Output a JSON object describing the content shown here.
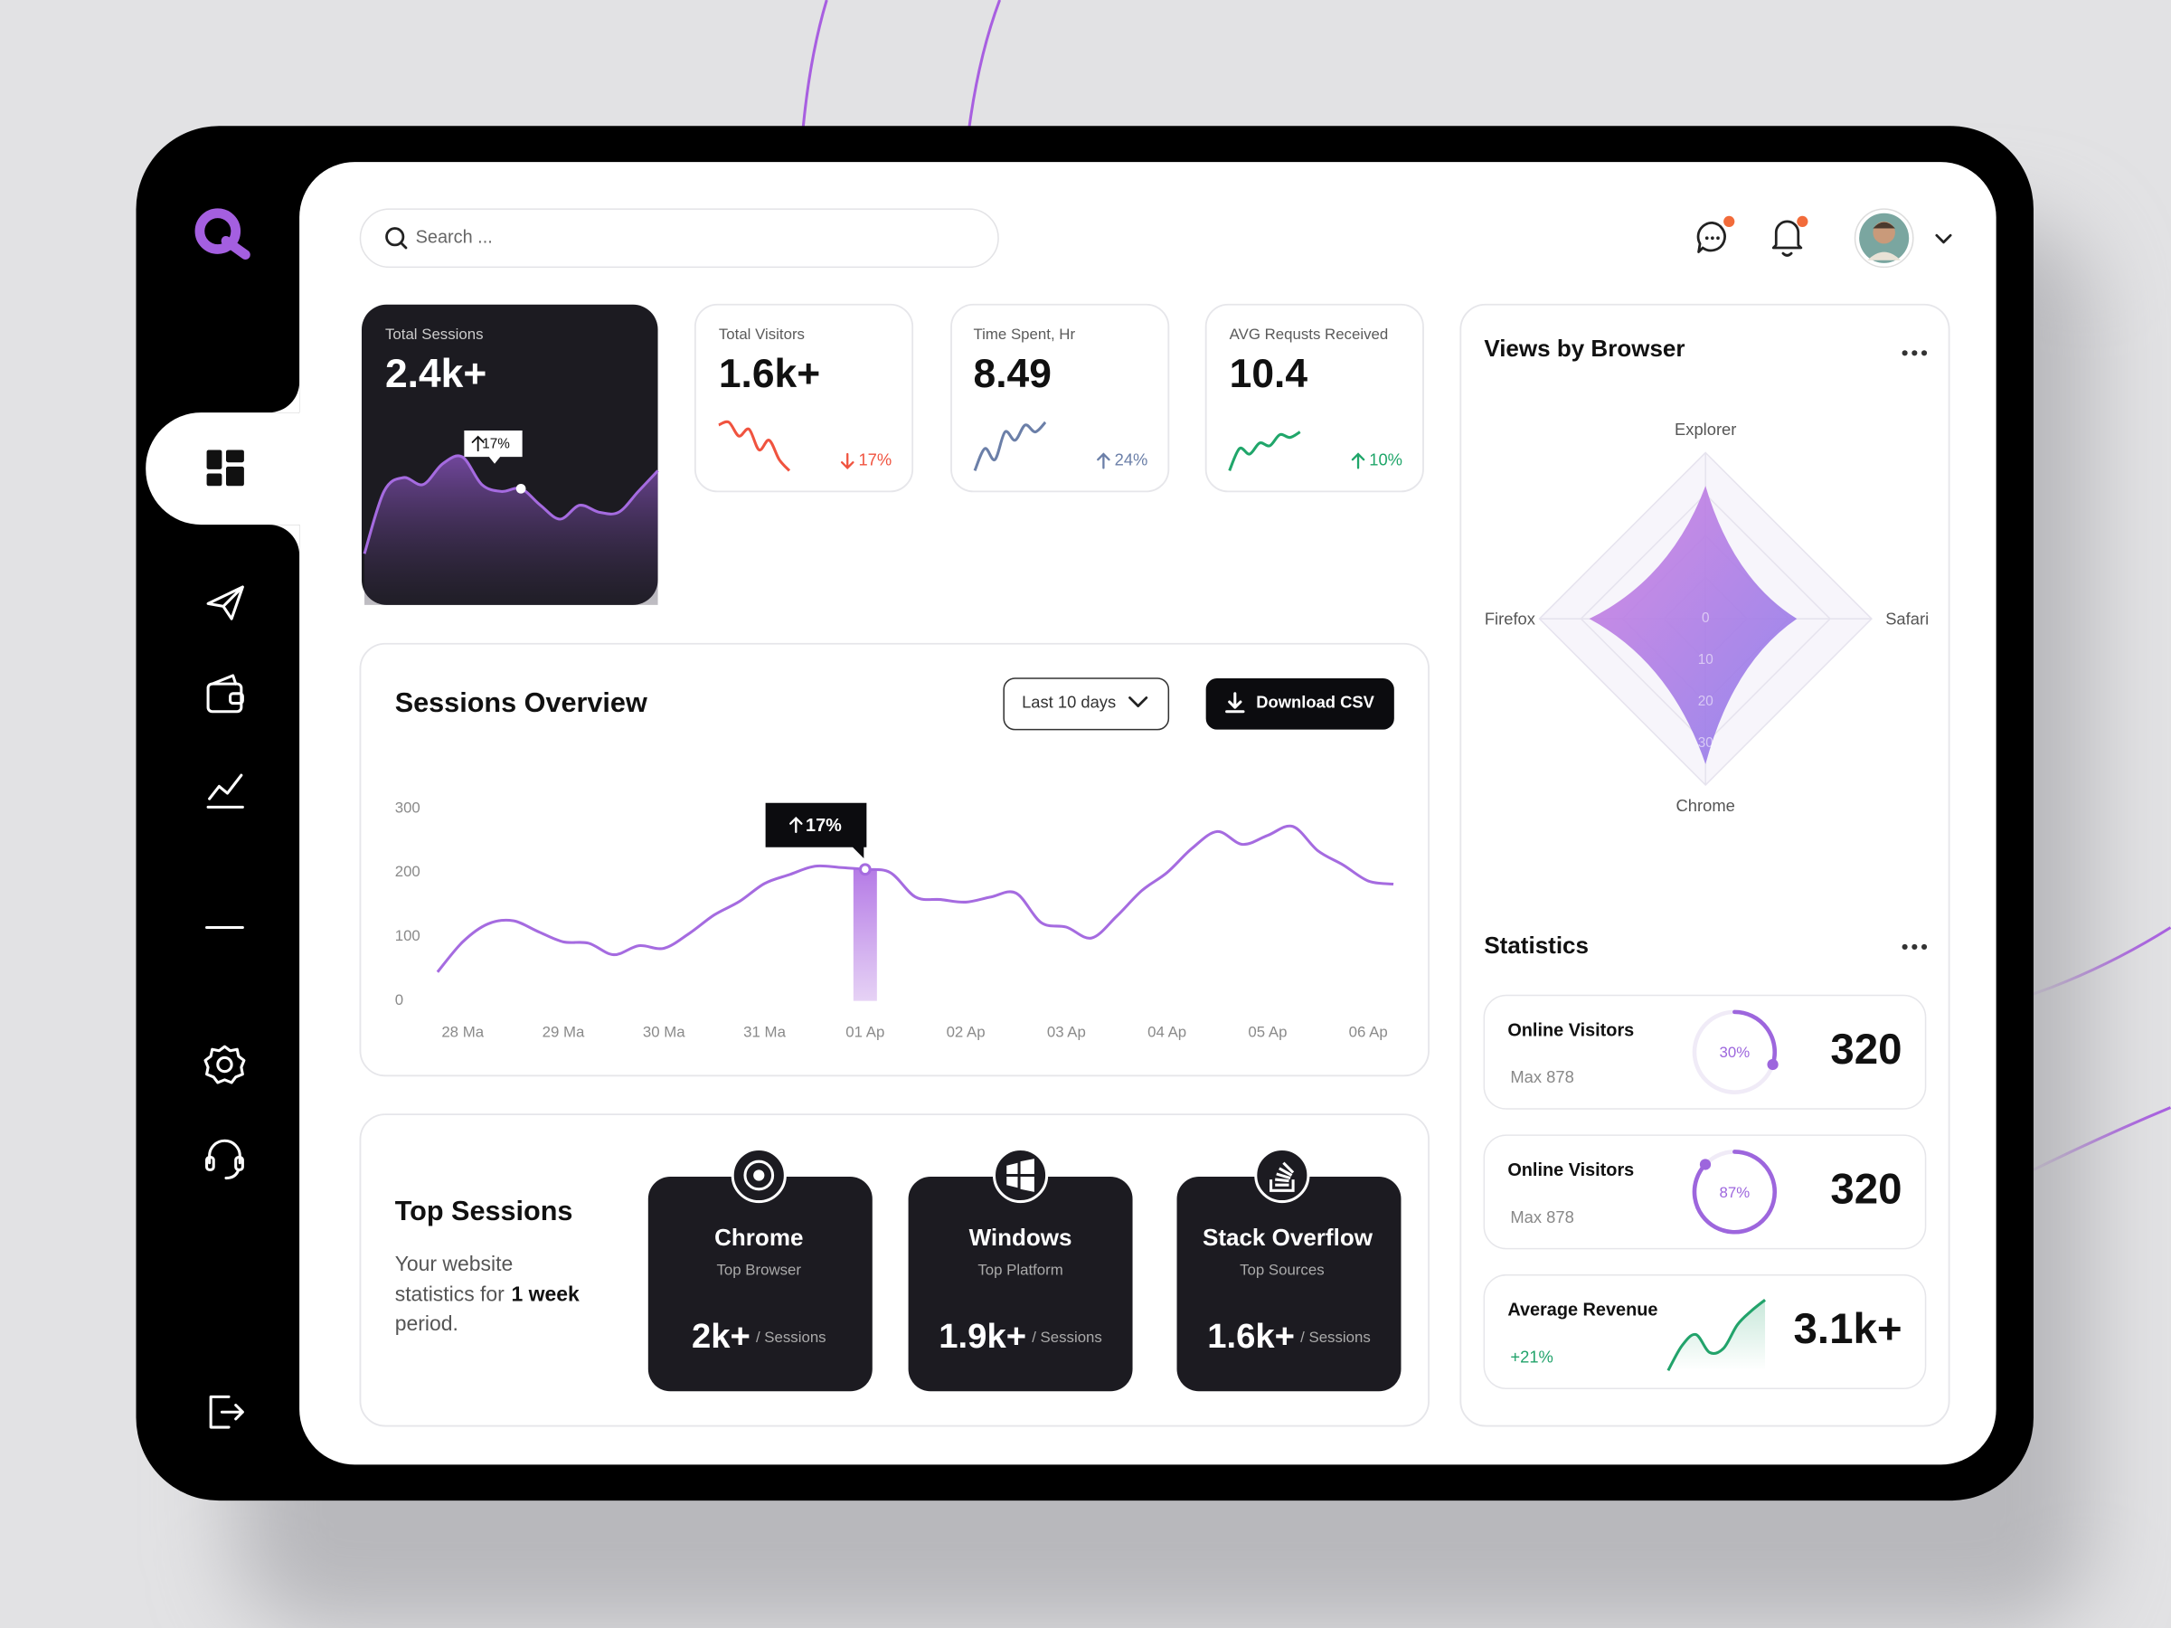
{
  "search": {
    "placeholder": "Search ..."
  },
  "kpis": [
    {
      "label": "Total Sessions",
      "value": "2.4k+",
      "tooltip": "17%",
      "color": "#a56be0",
      "trend": [
        40,
        85,
        95,
        90,
        105,
        110,
        90,
        85,
        87,
        75,
        65,
        75,
        70,
        70,
        85,
        100
      ]
    },
    {
      "label": "Total Visitors",
      "value": "1.6k+",
      "change": "17%",
      "direction": "down",
      "color": "#f0533f",
      "trend": [
        33,
        35,
        25,
        30,
        15,
        22,
        8,
        0
      ]
    },
    {
      "label": "Time Spent, Hr",
      "value": "8.49",
      "change": "24%",
      "direction": "up",
      "color": "#6b7fa8",
      "trend": [
        0,
        16,
        8,
        28,
        22,
        33,
        28,
        35
      ]
    },
    {
      "label": "AVG Requsts Received",
      "value": "10.4",
      "change": "10%",
      "direction": "up",
      "color": "#20a66a",
      "trend": [
        0,
        16,
        12,
        20,
        18,
        26,
        24,
        28
      ]
    }
  ],
  "sessions_overview": {
    "range_button": "Last 10 days",
    "download_button": "Download CSV"
  },
  "chart_data": [
    {
      "type": "line",
      "title": "Sessions Overview",
      "x": [
        -0.25,
        0,
        0.25,
        0.5,
        0.75,
        1,
        1.25,
        1.5,
        1.75,
        2,
        2.25,
        2.5,
        2.75,
        3,
        3.25,
        3.5,
        3.75,
        4,
        4.25,
        4.5,
        4.75,
        5,
        5.25,
        5.5,
        5.75,
        6,
        6.25,
        6.5,
        6.75,
        7,
        7.25,
        7.5,
        7.75,
        8,
        8.25,
        8.5,
        8.75,
        9,
        9.25
      ],
      "xlim": [
        -0.25,
        9.25
      ],
      "xticks": [
        {
          "value": 0,
          "label": "28 Ma"
        },
        {
          "value": 1,
          "label": "29 Ma"
        },
        {
          "value": 2,
          "label": "30 Ma"
        },
        {
          "value": 3,
          "label": "31 Ma"
        },
        {
          "value": 4,
          "label": "01 Ap"
        },
        {
          "value": 5,
          "label": "02 Ap"
        },
        {
          "value": 6,
          "label": "03 Ap"
        },
        {
          "value": 7,
          "label": "04 Ap"
        },
        {
          "value": 8,
          "label": "05 Ap"
        },
        {
          "value": 9,
          "label": "06 Ap"
        }
      ],
      "ylim": [
        0,
        300
      ],
      "yticks": [
        0,
        100,
        200,
        300
      ],
      "series": [
        {
          "color": "#a56be0",
          "values": [
            45,
            92,
            120,
            125,
            108,
            92,
            90,
            72,
            86,
            82,
            105,
            134,
            155,
            183,
            197,
            210,
            208,
            205,
            200,
            162,
            158,
            154,
            162,
            168,
            122,
            115,
            98,
            132,
            172,
            200,
            238,
            264,
            244,
            258,
            272,
            234,
            212,
            187,
            182
          ]
        }
      ],
      "annotations": [
        {
          "x": 4,
          "text": "17%"
        }
      ]
    },
    {
      "type": "radar",
      "title": "Views by Browser",
      "categories": [
        "Explorer",
        "Safari",
        "Chrome",
        "Firefox"
      ],
      "values": [
        32,
        22,
        35,
        28
      ],
      "rlim": [
        0,
        40
      ],
      "rticks": [
        0,
        10,
        20,
        30
      ],
      "color": "#b57be6"
    }
  ],
  "top_sessions": {
    "title": "Top Sessions",
    "description": [
      "Your website",
      "statistics for",
      "1 week",
      "period."
    ],
    "cards": [
      {
        "name": "Chrome",
        "subtitle": "Top Browser",
        "value": "2k+",
        "unit": "/ Sessions"
      },
      {
        "name": "Windows",
        "subtitle": "Top Platform",
        "value": "1.9k+",
        "unit": "/ Sessions"
      },
      {
        "name": "Stack Overflow",
        "subtitle": "Top Sources",
        "value": "1.6k+",
        "unit": "/ Sessions"
      }
    ]
  },
  "statistics": {
    "title": "Statistics",
    "cards": [
      {
        "title": "Online Visitors",
        "subtitle": "Max 878",
        "progress": {
          "value": 30,
          "label": "30%"
        },
        "value": "320"
      },
      {
        "title": "Online Visitors",
        "subtitle": "Max 878",
        "progress": {
          "value": 87,
          "label": "87%"
        },
        "value": "320"
      },
      {
        "title": "Average Revenue",
        "change": "+21%",
        "value": "3.1k+",
        "color": "#22a36b",
        "trend": [
          0,
          18,
          26,
          13,
          16,
          33,
          43,
          51
        ]
      }
    ]
  }
}
